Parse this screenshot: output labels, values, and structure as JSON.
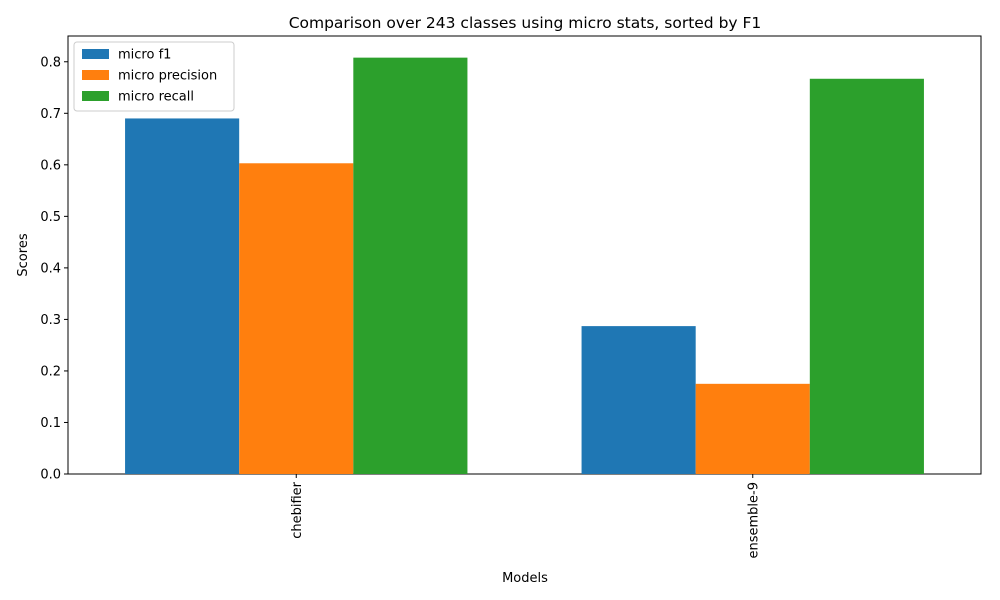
{
  "chart_data": {
    "type": "bar",
    "title": "Comparison over 243 classes using micro stats, sorted by F1",
    "xlabel": "Models",
    "ylabel": "Scores",
    "categories": [
      "chebifier",
      "ensemble-9"
    ],
    "series": [
      {
        "name": "micro f1",
        "color": "#1f77b4",
        "values": [
          0.69,
          0.287
        ]
      },
      {
        "name": "micro precision",
        "color": "#ff7f0e",
        "values": [
          0.603,
          0.175
        ]
      },
      {
        "name": "micro recall",
        "color": "#2ca02c",
        "values": [
          0.808,
          0.767
        ]
      }
    ],
    "ylim": [
      0,
      0.85
    ],
    "yticks": [
      "0.0",
      "0.1",
      "0.2",
      "0.3",
      "0.4",
      "0.5",
      "0.6",
      "0.7",
      "0.8"
    ],
    "grid": false,
    "legend_position": "top-left",
    "xtick_rotation": "vertical"
  }
}
